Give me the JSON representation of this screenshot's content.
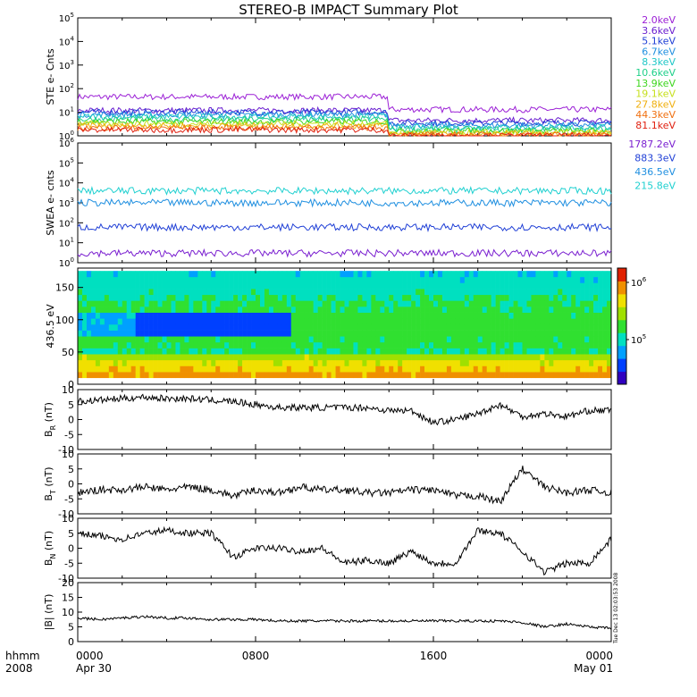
{
  "title": "STEREO-B IMPACT Summary Plot",
  "timestamp_note": "Tue Dec 13 02:03:53 2008",
  "time_axis": {
    "corner_top": "hhmm",
    "corner_bottom": "2008",
    "range_hours": [
      0,
      24
    ],
    "ticks": [
      {
        "hour": 0,
        "label": "0000",
        "sub": "Apr 30"
      },
      {
        "hour": 8,
        "label": "0800",
        "sub": ""
      },
      {
        "hour": 16,
        "label": "1600",
        "sub": ""
      },
      {
        "hour": 24,
        "label": "0000",
        "sub": "May 01"
      }
    ]
  },
  "colors": {
    "ste": [
      "#9b1fd6",
      "#6a1fd0",
      "#1f3fd6",
      "#1f8fe0",
      "#1fc7c7",
      "#1fd08a",
      "#3fd61f",
      "#c7e01f",
      "#f0b010",
      "#f07010",
      "#e02010"
    ],
    "swea": [
      "#7a1fd0",
      "#1f3fd6",
      "#1f8fe0",
      "#1fd0d0"
    ],
    "colorbar": [
      "#3000c0",
      "#0040ff",
      "#00a0ff",
      "#00e0c0",
      "#30e030",
      "#a0e000",
      "#f0e000",
      "#f09000",
      "#e02000"
    ]
  },
  "chart_data": [
    {
      "id": "ste",
      "type": "line",
      "ylabel": "STE e- Cnts",
      "scale": "log",
      "ylim": [
        1,
        100000
      ],
      "yticks": [
        "10^0",
        "10^1",
        "10^2",
        "10^3",
        "10^4",
        "10^5"
      ],
      "series": [
        {
          "name": "2.0keV",
          "start": 45,
          "end": 13
        },
        {
          "name": "3.6keV",
          "start": 12,
          "end": 4.5
        },
        {
          "name": "5.1keV",
          "start": 10,
          "end": 3.5
        },
        {
          "name": "6.7keV",
          "start": 8,
          "end": 2.8
        },
        {
          "name": "8.3keV",
          "start": 6.5,
          "end": 2.3
        },
        {
          "name": "10.6keV",
          "start": 5,
          "end": 1.9
        },
        {
          "name": "13.9keV",
          "start": 4,
          "end": 1.6
        },
        {
          "name": "19.1keV",
          "start": 3.3,
          "end": 1.4
        },
        {
          "name": "27.8keV",
          "start": 2.7,
          "end": 1.2
        },
        {
          "name": "44.3keV",
          "start": 2.2,
          "end": 1.1
        },
        {
          "name": "81.1keV",
          "start": 1.8,
          "end": 1.0
        }
      ]
    },
    {
      "id": "swea",
      "type": "line",
      "ylabel": "SWEA e- cnts",
      "scale": "log",
      "ylim": [
        1,
        1000000
      ],
      "yticks": [
        "10^0",
        "10^1",
        "10^2",
        "10^3",
        "10^4",
        "10^5",
        "10^6"
      ],
      "series": [
        {
          "name": "1787.2eV",
          "start": 3,
          "end": 3
        },
        {
          "name": "883.3eV",
          "start": 60,
          "end": 60
        },
        {
          "name": "436.5eV",
          "start": 1000,
          "end": 1000
        },
        {
          "name": "215.8eV",
          "start": 4000,
          "end": 4000
        }
      ]
    },
    {
      "id": "pad",
      "type": "heatmap",
      "ylabel": "436.5 eV",
      "ylim": [
        0,
        180
      ],
      "yticks": [
        0,
        50,
        100,
        150
      ],
      "colorbar_ticks": [
        "10^5",
        "10^6"
      ]
    },
    {
      "id": "br",
      "type": "line",
      "ylabel": "B_R (nT)",
      "ylim": [
        -10,
        10
      ],
      "yticks": [
        -10,
        -5,
        0,
        5,
        10
      ],
      "x": [
        0,
        1,
        2,
        3,
        4,
        5,
        6,
        7,
        8,
        9,
        10,
        11,
        12,
        13,
        14,
        15,
        16,
        17,
        18,
        19,
        20,
        21,
        22,
        23,
        24
      ],
      "values": [
        6,
        6.5,
        7,
        7.5,
        7,
        7,
        6.5,
        6,
        5,
        4,
        4,
        4,
        4,
        4,
        3,
        3,
        -1,
        0,
        2,
        5,
        1,
        2,
        1,
        3,
        3
      ]
    },
    {
      "id": "bt",
      "type": "line",
      "ylabel": "B_T (nT)",
      "ylim": [
        -10,
        10
      ],
      "yticks": [
        -10,
        -5,
        0,
        5,
        10
      ],
      "x": [
        0,
        1,
        2,
        3,
        4,
        5,
        6,
        7,
        8,
        9,
        10,
        11,
        12,
        13,
        14,
        15,
        16,
        17,
        18,
        19,
        20,
        21,
        22,
        23,
        24
      ],
      "values": [
        -3,
        -2,
        -2,
        -1,
        -2,
        -1,
        -2,
        -4,
        -2,
        -3,
        -1,
        -2,
        -2,
        -3,
        -3,
        -2,
        -2,
        -4,
        -4,
        -6,
        5,
        -1,
        -3,
        -2,
        -3
      ]
    },
    {
      "id": "bn",
      "type": "line",
      "ylabel": "B_N (nT)",
      "ylim": [
        -10,
        10
      ],
      "yticks": [
        -10,
        -5,
        0,
        5,
        10
      ],
      "x": [
        0,
        1,
        2,
        3,
        4,
        5,
        6,
        7,
        8,
        9,
        10,
        11,
        12,
        13,
        14,
        15,
        16,
        17,
        18,
        19,
        20,
        21,
        22,
        23,
        24
      ],
      "values": [
        5,
        4,
        3,
        5,
        6,
        5,
        5,
        -3,
        0,
        0,
        -1,
        0,
        -5,
        -4,
        -5,
        -1,
        -5,
        -5,
        6,
        5,
        -1,
        -8,
        -5,
        -5,
        3
      ]
    },
    {
      "id": "bmag",
      "type": "line",
      "ylabel": "|B| (nT)",
      "ylim": [
        0,
        20
      ],
      "yticks": [
        0,
        5,
        10,
        15,
        20
      ],
      "x": [
        0,
        1,
        2,
        3,
        4,
        5,
        6,
        7,
        8,
        9,
        10,
        11,
        12,
        13,
        14,
        15,
        16,
        17,
        18,
        19,
        20,
        21,
        22,
        23,
        24
      ],
      "values": [
        8,
        7.5,
        8,
        8.5,
        8,
        8,
        7.5,
        7.5,
        7.5,
        7,
        7,
        7,
        7,
        7,
        7,
        7,
        7,
        7,
        7,
        7,
        6.5,
        5,
        6,
        5,
        4.5
      ]
    }
  ]
}
